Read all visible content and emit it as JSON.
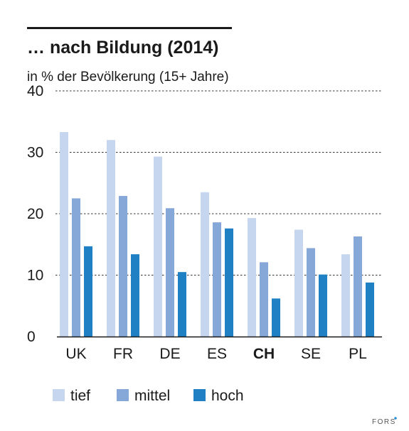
{
  "colors": {
    "tief": "#c7d6ef",
    "mittel": "#85a8d8",
    "hoch": "#1f80c4",
    "text": "#1a1a1a",
    "grid": "#333333",
    "brand_dot": "#2a8fd6"
  },
  "brand": "FORS",
  "chart_data": {
    "type": "bar",
    "title": "… nach Bildung (2014)",
    "ylabel": "in % der Bevölkerung (15+ Jahre)",
    "xlabel": "",
    "ylim": [
      0,
      40
    ],
    "yticks": [
      0,
      10,
      20,
      30,
      40
    ],
    "grid": "horizontal dashed",
    "legend_position": "bottom",
    "categories": [
      "UK",
      "FR",
      "DE",
      "ES",
      "CH",
      "SE",
      "PL"
    ],
    "highlighted_category": "CH",
    "series": [
      {
        "name": "tief",
        "color_key": "tief",
        "values": [
          33.3,
          32.0,
          29.3,
          23.5,
          19.3,
          17.4,
          13.4
        ]
      },
      {
        "name": "mittel",
        "color_key": "mittel",
        "values": [
          22.5,
          22.9,
          20.9,
          18.6,
          12.1,
          14.4,
          16.3
        ]
      },
      {
        "name": "hoch",
        "color_key": "hoch",
        "values": [
          14.7,
          13.4,
          10.5,
          17.6,
          6.2,
          10.1,
          8.8
        ]
      }
    ]
  }
}
